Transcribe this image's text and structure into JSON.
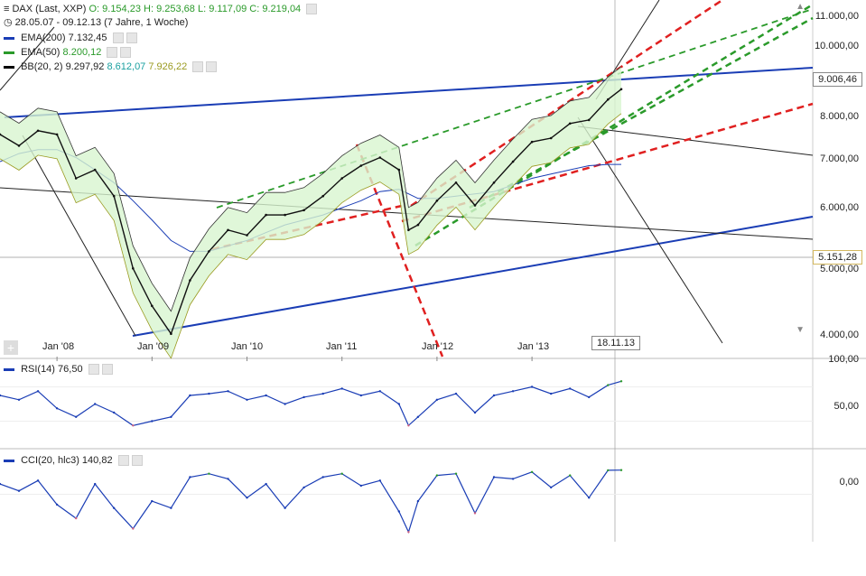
{
  "header": {
    "title": "DAX (Last, XXP)",
    "ohlc": {
      "O": "9.154,23",
      "H": "9.253,68",
      "L": "9.117,09",
      "C": "9.219,04"
    },
    "range": "28.05.07 - 09.12.13 (7 Jahre, 1 Woche)"
  },
  "indicators": [
    {
      "label": "EMA(200)",
      "value": "7.132,45",
      "color": "#1a3db5"
    },
    {
      "label": "EMA(50)",
      "value": "8.200,12",
      "color": "#2a9a2a"
    },
    {
      "label": "BB(20, 2)",
      "value": "9.297,92",
      "v2": "8.612,07",
      "v3": "7.926,22",
      "color": "#000000",
      "c2": "#1aa0a0",
      "c3": "#9a9a20"
    }
  ],
  "rsi": {
    "label": "RSI(14)",
    "value": "76,50"
  },
  "cci": {
    "label": "CCI(20, hlc3)",
    "value": "140,82"
  },
  "price_axis": [
    "11.000,00",
    "10.000,00",
    "9.006,46",
    "8.000,00",
    "7.000,00",
    "6.000,00",
    "5.151,28",
    "5.000,00",
    "4.000,00"
  ],
  "rsi_axis": [
    "100,00",
    "50,00"
  ],
  "cci_axis": [
    "0,00"
  ],
  "date_tag": "18.11.13",
  "chart_data": {
    "type": "line",
    "scale": "log",
    "xlabels": [
      "Jan '08",
      "Jan '09",
      "Jan '10",
      "Jan '11",
      "Jan '12",
      "Jan '13"
    ],
    "x": [
      2007.4,
      2007.6,
      2007.8,
      2008.0,
      2008.2,
      2008.4,
      2008.6,
      2008.8,
      2009.0,
      2009.2,
      2009.4,
      2009.6,
      2009.8,
      2010.0,
      2010.2,
      2010.4,
      2010.6,
      2010.8,
      2011.0,
      2011.2,
      2011.4,
      2011.6,
      2011.7,
      2011.8,
      2012.0,
      2012.2,
      2012.4,
      2012.6,
      2012.8,
      2013.0,
      2013.2,
      2013.4,
      2013.6,
      2013.8,
      2013.94
    ],
    "close": [
      7900,
      7600,
      8000,
      7900,
      6800,
      7000,
      6400,
      5000,
      4400,
      4000,
      4800,
      5300,
      5700,
      5600,
      6000,
      6000,
      6100,
      6400,
      6800,
      7100,
      7300,
      7000,
      5700,
      5800,
      6300,
      6700,
      6200,
      6700,
      7200,
      7700,
      7800,
      8200,
      8300,
      8900,
      9219
    ],
    "ema200": [
      7200,
      7400,
      7500,
      7500,
      7300,
      7000,
      6700,
      6300,
      5900,
      5500,
      5300,
      5300,
      5400,
      5500,
      5650,
      5800,
      5900,
      6000,
      6150,
      6300,
      6500,
      6550,
      6450,
      6350,
      6350,
      6400,
      6450,
      6500,
      6650,
      6800,
      6900,
      7000,
      7100,
      7132,
      7132
    ],
    "rsi": [
      60,
      55,
      65,
      45,
      35,
      50,
      40,
      25,
      30,
      35,
      60,
      62,
      65,
      55,
      60,
      50,
      58,
      62,
      68,
      60,
      65,
      50,
      25,
      35,
      55,
      62,
      40,
      60,
      65,
      70,
      62,
      68,
      58,
      72,
      76.5
    ],
    "cci": [
      60,
      20,
      80,
      -60,
      -140,
      60,
      -80,
      -200,
      -40,
      -80,
      100,
      120,
      90,
      -20,
      60,
      -80,
      40,
      100,
      120,
      50,
      80,
      -100,
      -220,
      -40,
      110,
      120,
      -110,
      100,
      90,
      130,
      40,
      110,
      -20,
      140,
      140.82
    ],
    "ylim": [
      3700,
      12500
    ],
    "rsi_range": [
      0,
      100
    ],
    "cci_range": [
      -250,
      250
    ]
  }
}
